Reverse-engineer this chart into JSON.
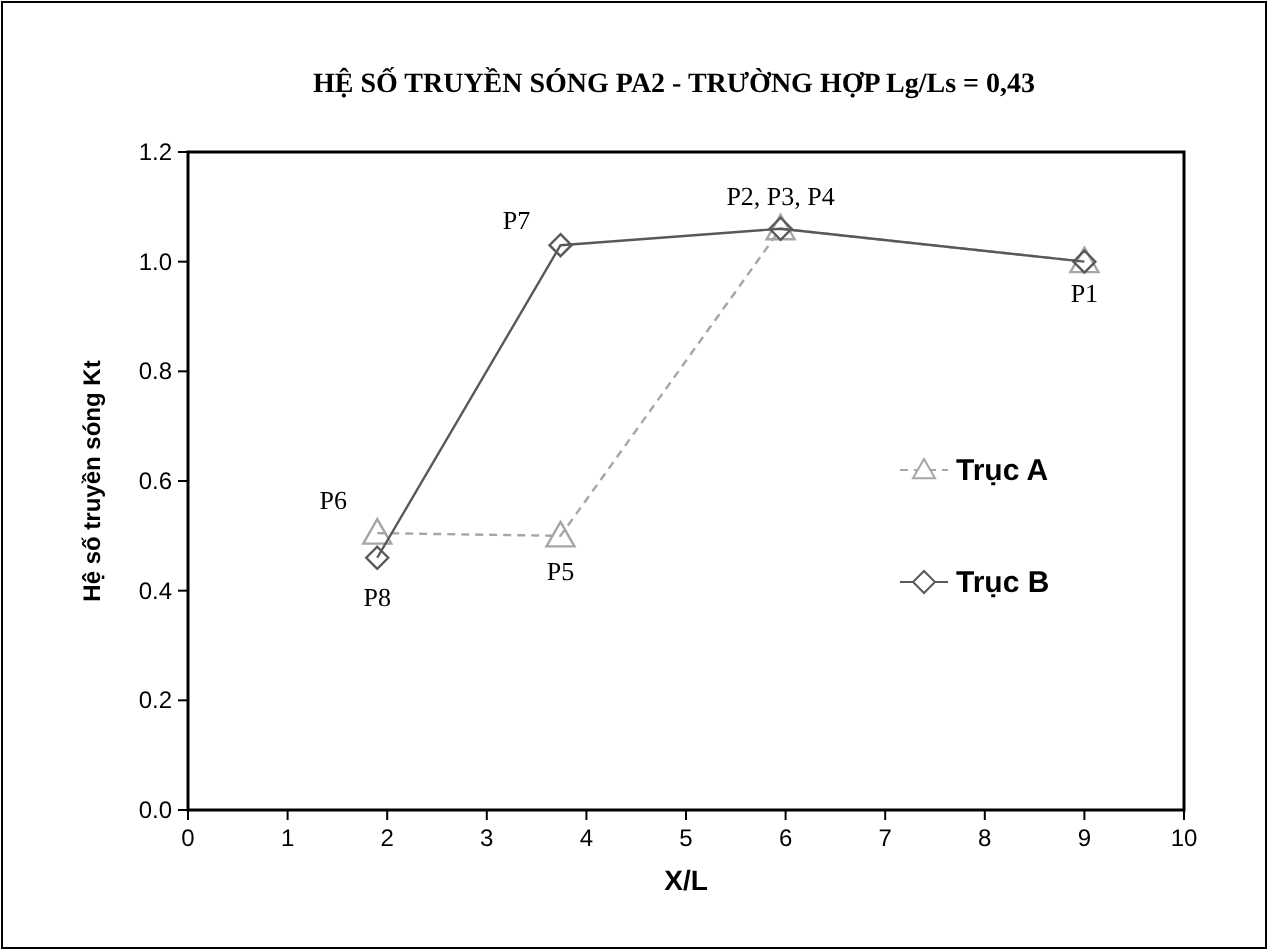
{
  "chart_data": {
    "type": "line",
    "title": "HỆ SỐ TRUYỀN SÓNG  PA2 - TRƯỜNG HỢP Lg/Ls = 0,43",
    "xlabel": "X/L",
    "ylabel": "Hệ số truyền sóng Kt",
    "xlim": [
      0,
      10
    ],
    "xticks": [
      0,
      1,
      2,
      3,
      4,
      5,
      6,
      7,
      8,
      9,
      10
    ],
    "ylim": [
      0,
      1.2
    ],
    "yticks": [
      {
        "value": 0,
        "label": "0.0"
      },
      {
        "value": 0.2,
        "label": "0.2"
      },
      {
        "value": 0.4,
        "label": "0.4"
      },
      {
        "value": 0.6,
        "label": "0.6"
      },
      {
        "value": 0.8,
        "label": "0.8"
      },
      {
        "value": 1,
        "label": "1.0"
      },
      {
        "value": 1.2,
        "label": "1.2"
      }
    ],
    "grid": false,
    "legend": "right",
    "series": [
      {
        "name": "Trục A",
        "color": "#a6a6a6",
        "x": [
          1.9,
          3.74,
          5.95,
          9.0
        ],
        "values": [
          0.505,
          0.5,
          1.06,
          1.0
        ],
        "marker": "triangle",
        "line_style": "dashed"
      },
      {
        "name": "Trục B",
        "color": "#595959",
        "x": [
          1.9,
          3.74,
          5.95,
          9.0
        ],
        "values": [
          0.46,
          1.03,
          1.06,
          1.0
        ],
        "marker": "diamond",
        "line_style": "solid"
      }
    ],
    "annotations": [
      {
        "text": "P1",
        "x": 9.0,
        "y": 1.0
      },
      {
        "text": "P2, P3, P4",
        "x": 5.95,
        "y": 1.06
      },
      {
        "text": "P5",
        "x": 3.74,
        "y": 0.5
      },
      {
        "text": "P6",
        "x": 1.9,
        "y": 0.505
      },
      {
        "text": "P7",
        "x": 3.74,
        "y": 1.03
      },
      {
        "text": "P8",
        "x": 1.9,
        "y": 0.46
      }
    ]
  }
}
